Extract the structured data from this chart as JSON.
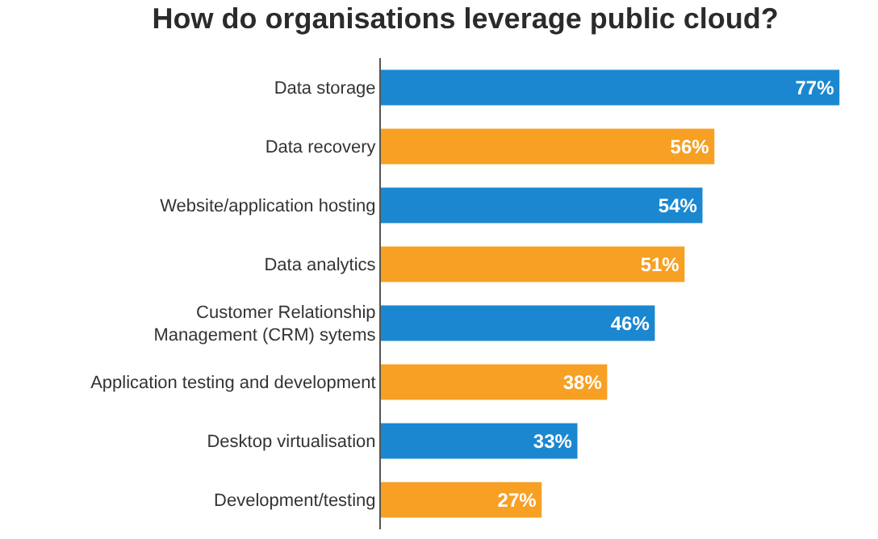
{
  "chart_data": {
    "type": "bar",
    "orientation": "horizontal",
    "title": "How do organisations leverage public cloud?",
    "categories": [
      "Data storage",
      "Data recovery",
      "Website/application hosting",
      "Data analytics",
      "Customer Relationship\nManagement (CRM) sytems",
      "Application testing and development",
      "Desktop virtualisation",
      "Development/testing"
    ],
    "values": [
      77,
      56,
      54,
      51,
      46,
      38,
      33,
      27
    ],
    "colors": [
      "#1b87d0",
      "#f7a023",
      "#1b87d0",
      "#f7a023",
      "#1b87d0",
      "#f7a023",
      "#1b87d0",
      "#f7a023"
    ],
    "value_labels": [
      "77%",
      "56%",
      "54%",
      "51%",
      "46%",
      "38%",
      "33%",
      "27%"
    ],
    "tick_labels": "y"
  }
}
